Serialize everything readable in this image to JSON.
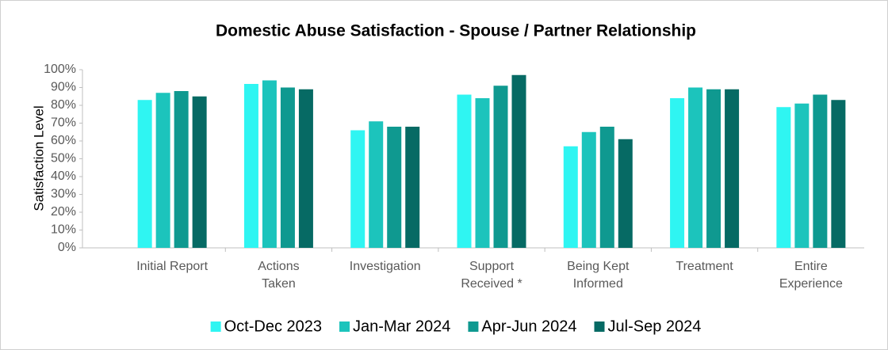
{
  "chart_data": {
    "type": "bar",
    "title": "Domestic Abuse Satisfaction - Spouse / Partner Relationship",
    "y_label": "Satisfaction Level",
    "categories": [
      "Initial Report",
      "Actions\nTaken",
      "Investigation",
      "Support\nReceived *",
      "Being Kept\nInformed",
      "Treatment",
      "Entire\nExperience"
    ],
    "series": [
      {
        "name": "Oct-Dec 2023",
        "color": "#2ff5f2",
        "values": [
          83,
          92,
          66,
          86,
          57,
          84,
          79
        ]
      },
      {
        "name": "Jan-Mar 2024",
        "color": "#1cc4bc",
        "values": [
          87,
          94,
          71,
          84,
          65,
          90,
          81
        ]
      },
      {
        "name": "Apr-Jun 2024",
        "color": "#0f9990",
        "values": [
          88,
          90,
          68,
          91,
          68,
          89,
          86
        ]
      },
      {
        "name": "Jul-Sep 2024",
        "color": "#066a64",
        "values": [
          85,
          89,
          68,
          97,
          61,
          89,
          83
        ]
      }
    ],
    "ylim": [
      0,
      100
    ],
    "yticks": [
      {
        "value": 0,
        "label": "0%"
      },
      {
        "value": 10,
        "label": "10%"
      },
      {
        "value": 20,
        "label": "20%"
      },
      {
        "value": 30,
        "label": "30%"
      },
      {
        "value": 40,
        "label": "40%"
      },
      {
        "value": 50,
        "label": "50%"
      },
      {
        "value": 60,
        "label": "60%"
      },
      {
        "value": 70,
        "label": "70%"
      },
      {
        "value": 80,
        "label": "80%"
      },
      {
        "value": 90,
        "label": "90%"
      },
      {
        "value": 100,
        "label": "100%"
      }
    ],
    "legend": "bottom"
  }
}
